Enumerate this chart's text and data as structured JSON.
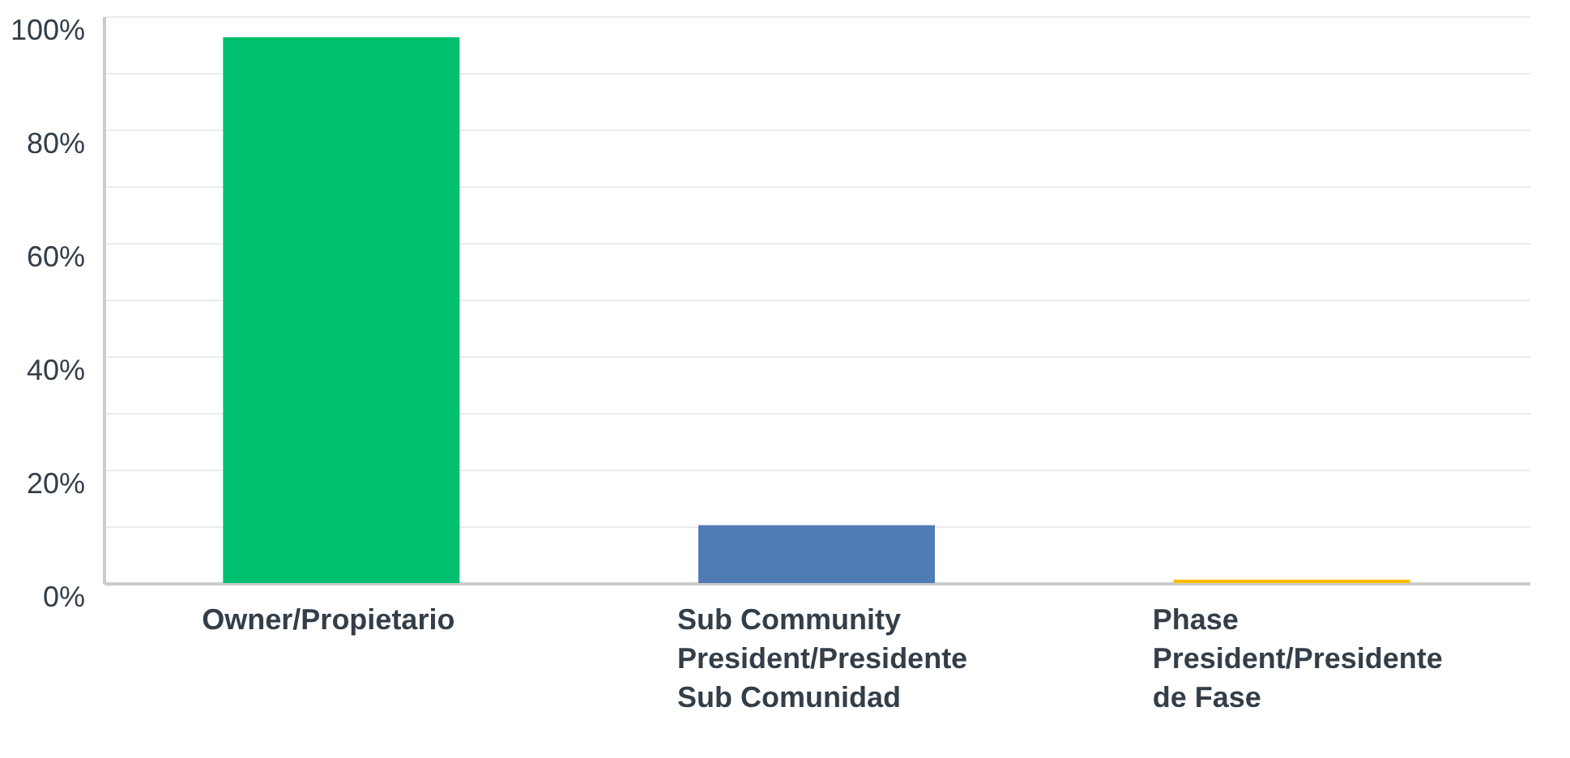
{
  "chart_data": {
    "type": "bar",
    "categories": [
      "Owner/Propietario",
      "Sub Community President/Presidente Sub Comunidad",
      "Phase President/Presidente de Fase"
    ],
    "values": [
      96.3,
      10.2,
      0.6
    ],
    "colors": [
      "#00bf6f",
      "#507cb6",
      "#f9be00"
    ],
    "ylim": [
      0,
      100
    ],
    "yticks": [
      {
        "value": 0,
        "label": "0%"
      },
      {
        "value": 10,
        "label": null
      },
      {
        "value": 20,
        "label": "20%"
      },
      {
        "value": 30,
        "label": null
      },
      {
        "value": 40,
        "label": "40%"
      },
      {
        "value": 50,
        "label": null
      },
      {
        "value": 60,
        "label": "60%"
      },
      {
        "value": 70,
        "label": null
      },
      {
        "value": 80,
        "label": "80%"
      },
      {
        "value": 90,
        "label": null
      },
      {
        "value": 100,
        "label": "100%"
      }
    ],
    "grid": "y"
  }
}
